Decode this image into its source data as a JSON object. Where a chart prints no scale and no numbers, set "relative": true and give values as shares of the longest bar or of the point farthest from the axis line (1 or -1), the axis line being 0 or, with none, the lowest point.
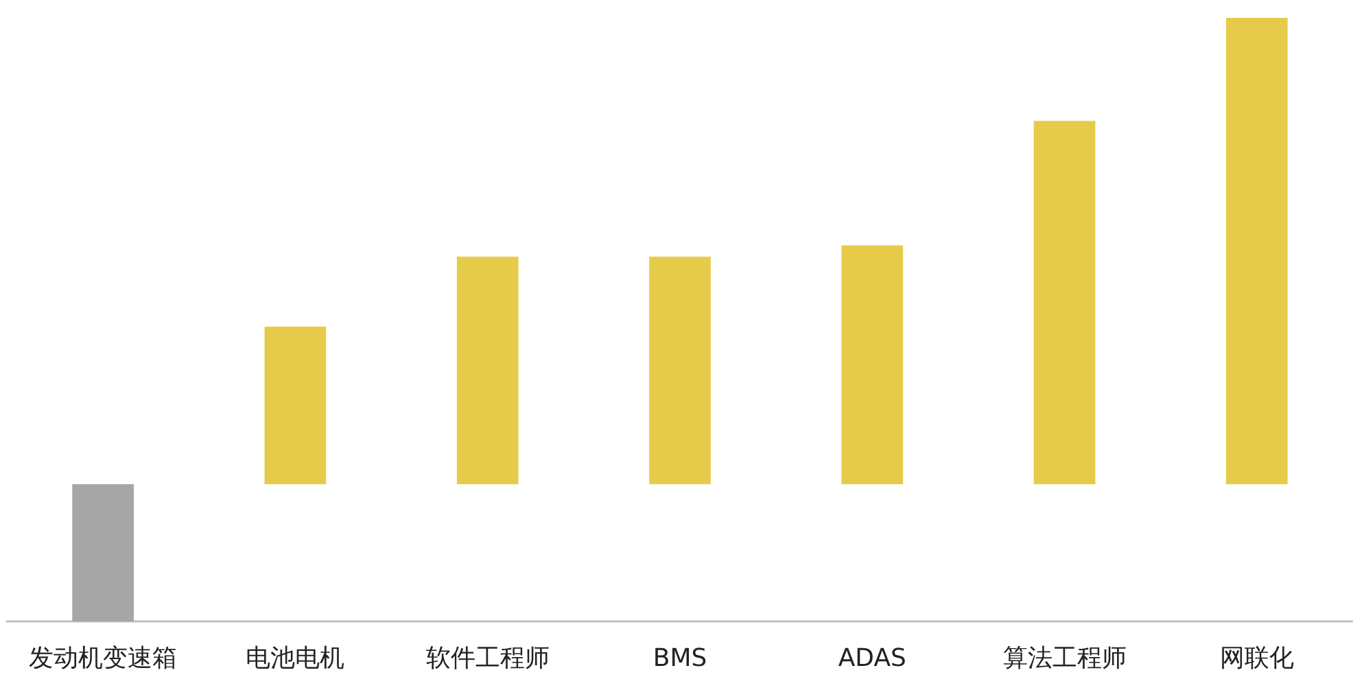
{
  "chart_data": {
    "type": "bar",
    "relative": true,
    "categories": [
      "发动机变速箱",
      "电池电机",
      "软件工程师",
      "BMS",
      "ADAS",
      "算法工程师",
      "网联化"
    ],
    "values": [
      -0.294,
      0.338,
      0.488,
      0.488,
      0.512,
      0.779,
      1
    ],
    "colors": [
      "#a6a6a6",
      "#e6cb4b",
      "#e6cb4b",
      "#e6cb4b",
      "#e6cb4b",
      "#e6cb4b",
      "#e6cb4b"
    ]
  }
}
